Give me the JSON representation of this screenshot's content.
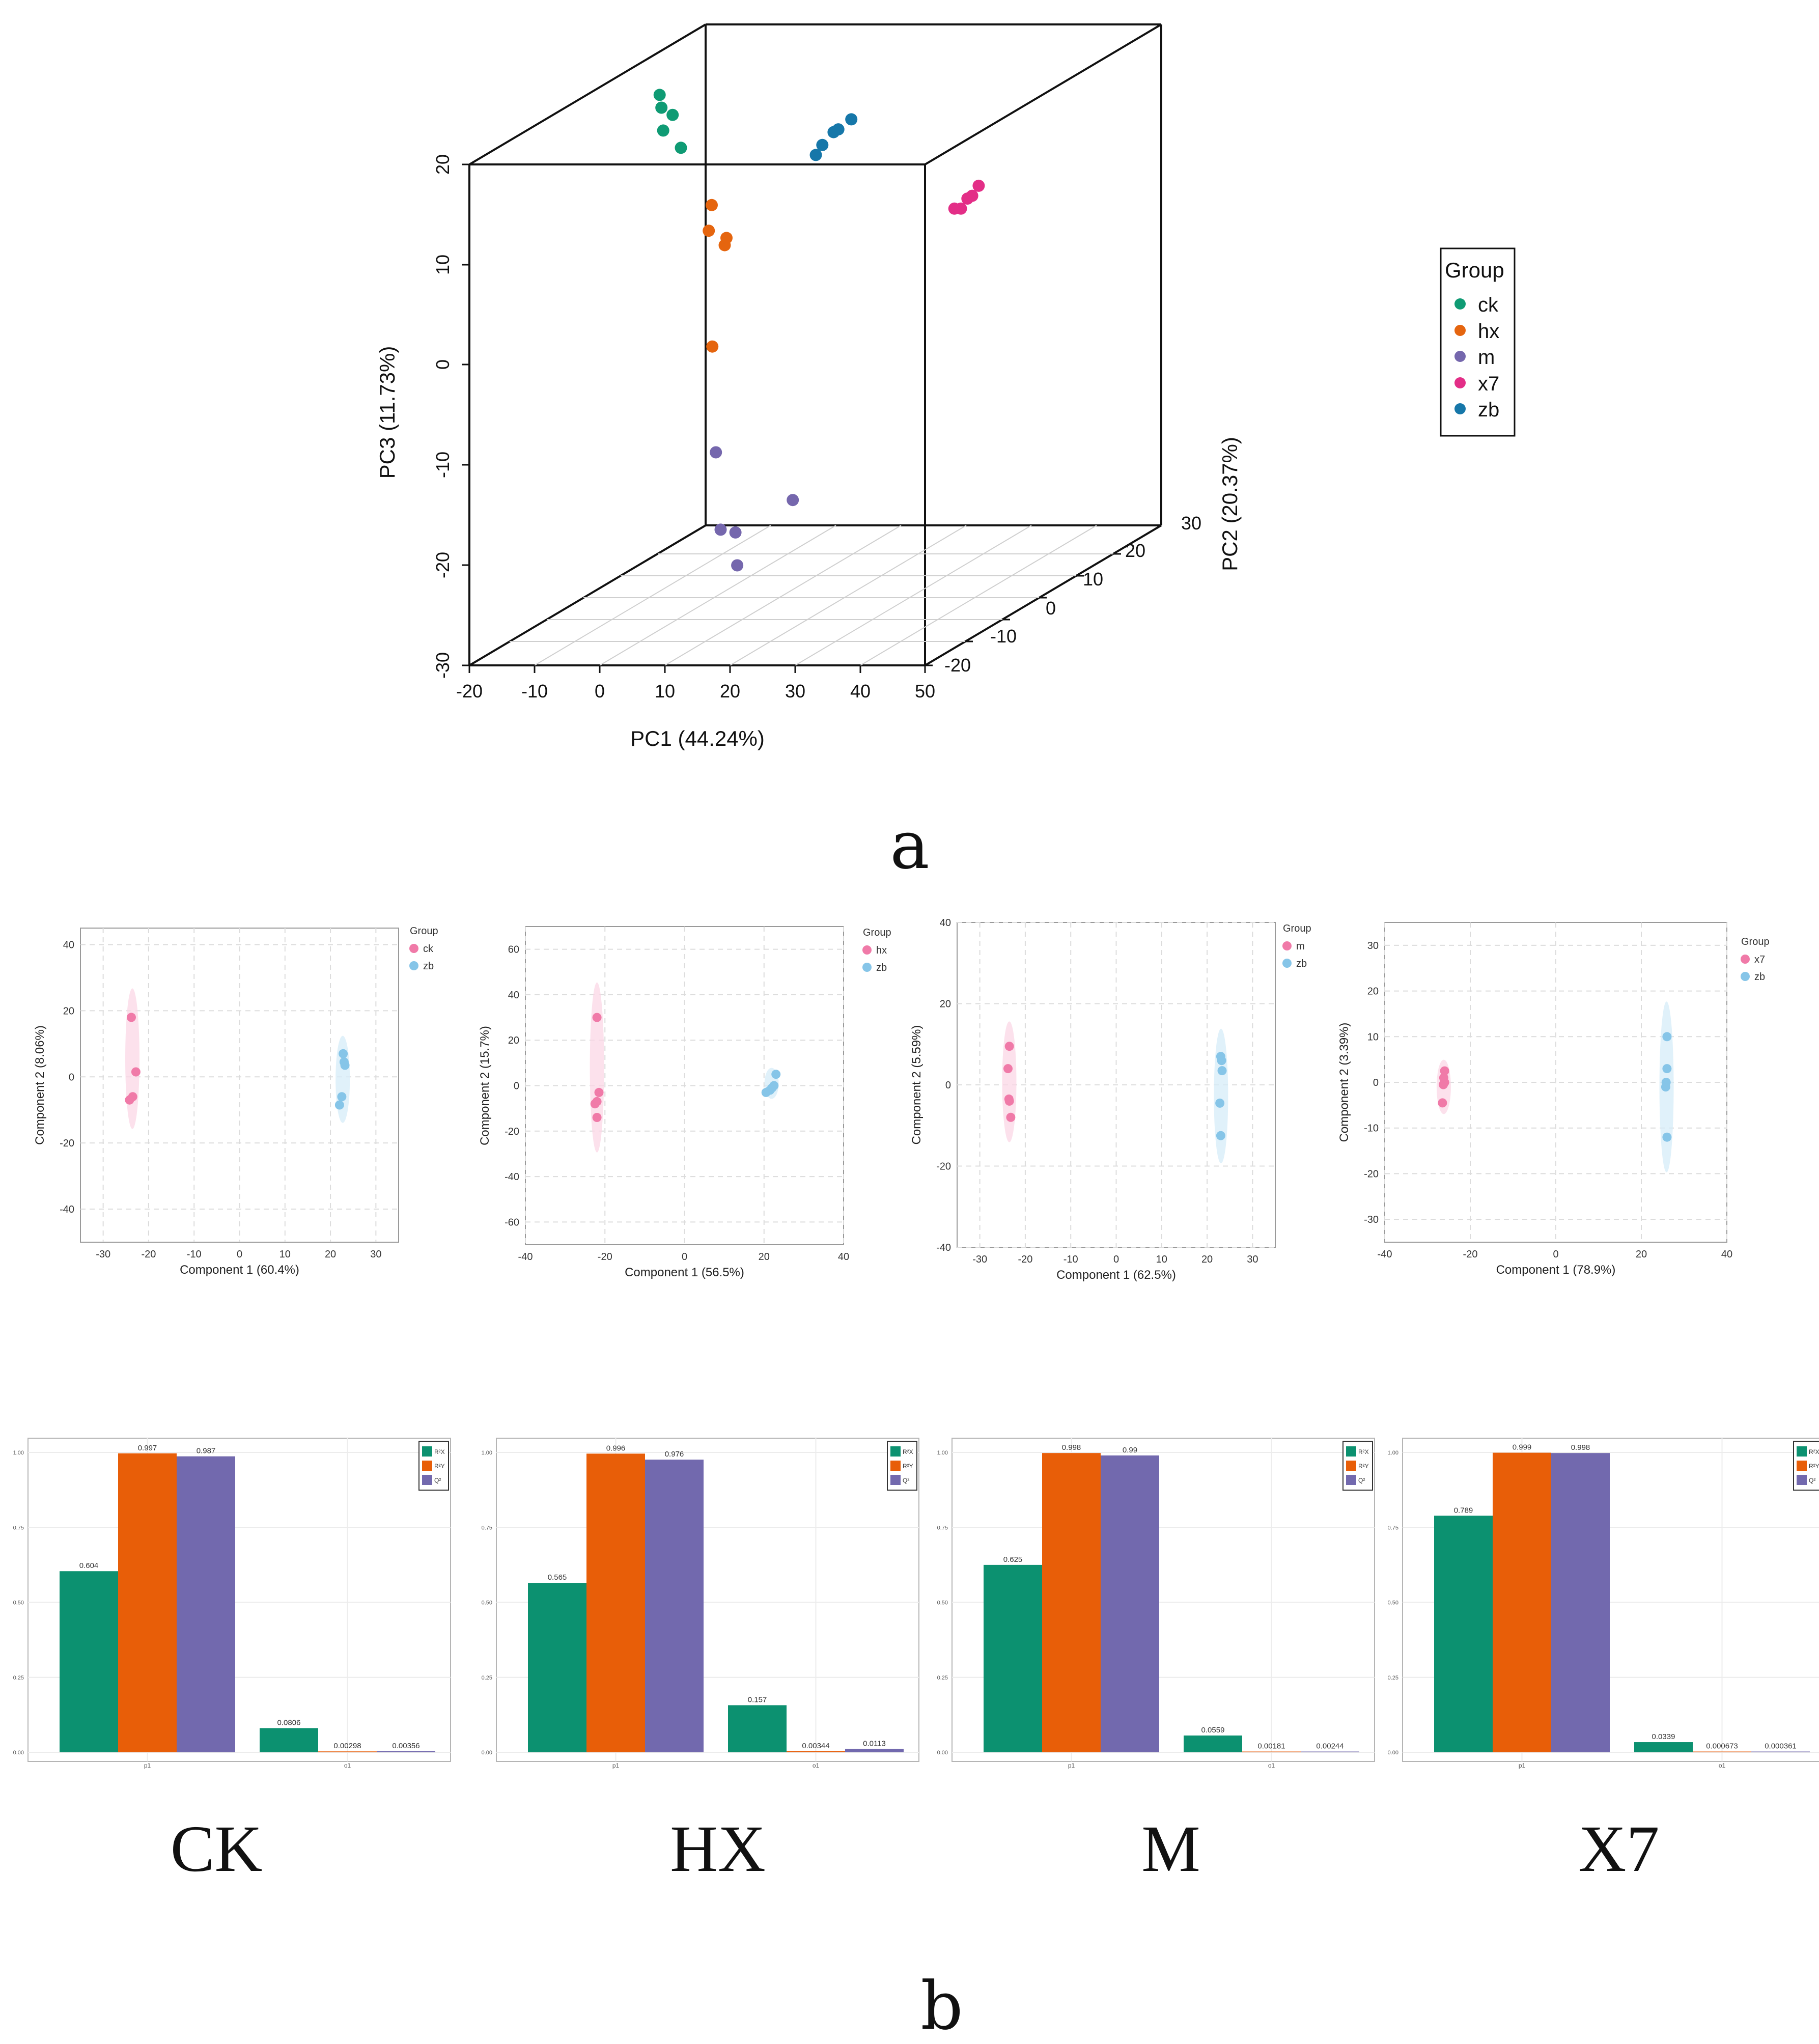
{
  "colors": {
    "ck": "#0f9b74",
    "hx": "#e5650f",
    "m": "#7567ad",
    "x7": "#e32e87",
    "zb": "#1677a9",
    "pink": "#f07aa8",
    "light_blue": "#86c5e8",
    "bar_green": "#0c9170",
    "bar_orange": "#e85e08",
    "bar_purple": "#7269ae"
  },
  "panel_a": {
    "letter": "a",
    "chart_data": {
      "type": "scatter3d",
      "xlabel": "PC1 (44.24%)",
      "ylabel": "PC2 (20.37%)",
      "zlabel": "PC3 (11.73%)",
      "x_ticks": [
        "-20",
        "-10",
        "0",
        "10",
        "20",
        "30",
        "40",
        "50"
      ],
      "y_ticks": [
        "-20",
        "-10",
        "0",
        "10",
        "20",
        "30"
      ],
      "z_ticks": [
        "-30",
        "-20",
        "-10",
        "0",
        "10",
        "20"
      ],
      "legend_title": "Group",
      "legend": [
        "ck",
        "hx",
        "m",
        "x7",
        "zb"
      ],
      "series": [
        {
          "name": "ck",
          "points": [
            [
              -14,
              12,
              18
            ],
            [
              -13,
              11,
              17
            ],
            [
              -12,
              12,
              16
            ],
            [
              -12,
              10,
              15
            ],
            [
              -10,
              11,
              13
            ]
          ]
        },
        {
          "name": "hx",
          "points": [
            [
              -6,
              12,
              7
            ],
            [
              -5,
              10,
              5
            ],
            [
              -4,
              12,
              3
            ],
            [
              -3,
              11,
              4
            ],
            [
              -3,
              8,
              -6
            ]
          ]
        },
        {
          "name": "m",
          "points": [
            [
              -1,
              6,
              -16
            ],
            [
              -1,
              7,
              -24
            ],
            [
              2,
              6,
              -24
            ],
            [
              3,
              5,
              -27
            ],
            [
              5,
              14,
              -23
            ]
          ]
        },
        {
          "name": "x7",
          "points": [
            [
              40,
              0,
              10
            ],
            [
              41,
              0,
              10
            ],
            [
              42,
              1,
              11
            ],
            [
              42,
              0,
              11
            ],
            [
              43,
              1,
              12
            ]
          ]
        },
        {
          "name": "zb",
          "points": [
            [
              10,
              12,
              12
            ],
            [
              11,
              12,
              13
            ],
            [
              12,
              14,
              14
            ],
            [
              12,
              13,
              14
            ],
            [
              14,
              14,
              15
            ]
          ]
        }
      ]
    }
  },
  "panel_b": {
    "letter": "b",
    "group_labels": [
      "CK",
      "HX",
      "M",
      "X7"
    ],
    "pls_da": [
      {
        "xlabel": "Component 1 (60.4%)",
        "ylabel": "Component 2 (8.06%)",
        "legend_title": "Group",
        "legend": [
          "ck",
          "zb"
        ],
        "xlim": [
          -35,
          35
        ],
        "ylim": [
          -50,
          45
        ],
        "x_ticks": [
          "-30",
          "-20",
          "-10",
          "0",
          "10",
          "20",
          "30"
        ],
        "y_ticks": [
          "-40",
          "-20",
          "0",
          "20",
          "40"
        ],
        "g1": [
          [
            -23.8,
            18
          ],
          [
            -22.8,
            1.5
          ],
          [
            -23.5,
            -6
          ],
          [
            -24.2,
            -7
          ]
        ],
        "g2": [
          [
            22.8,
            7
          ],
          [
            23,
            4.5
          ],
          [
            23.2,
            3.5
          ],
          [
            22.5,
            -6
          ],
          [
            22,
            -8.5
          ]
        ]
      },
      {
        "xlabel": "Component 1 (56.5%)",
        "ylabel": "Component 2 (15.7%)",
        "legend_title": "Group",
        "legend": [
          "hx",
          "zb"
        ],
        "xlim": [
          -40,
          40
        ],
        "ylim": [
          -70,
          70
        ],
        "x_ticks": [
          "-40",
          "-20",
          "0",
          "20",
          "40"
        ],
        "y_ticks": [
          "-60",
          "-40",
          "-20",
          "0",
          "20",
          "40",
          "60"
        ],
        "g1": [
          [
            -22,
            30
          ],
          [
            -21.5,
            -3
          ],
          [
            -22,
            -7
          ],
          [
            -22.5,
            -8
          ],
          [
            -22,
            -14
          ]
        ],
        "g2": [
          [
            23,
            5
          ],
          [
            22.5,
            0
          ],
          [
            22,
            -1
          ],
          [
            21.5,
            -2
          ],
          [
            20.5,
            -3
          ]
        ]
      },
      {
        "xlabel": "Component 1 (62.5%)",
        "ylabel": "Component 2 (5.59%)",
        "legend_title": "Group",
        "legend": [
          "m",
          "zb"
        ],
        "xlim": [
          -35,
          35
        ],
        "ylim": [
          -40,
          40
        ],
        "x_ticks": [
          "-30",
          "-20",
          "-10",
          "0",
          "10",
          "20",
          "30"
        ],
        "y_ticks": [
          "-40",
          "-20",
          "0",
          "20",
          "40"
        ],
        "g1": [
          [
            -23.5,
            9.5
          ],
          [
            -23.8,
            4
          ],
          [
            -23.5,
            -4
          ],
          [
            -23.6,
            -3.5
          ],
          [
            -23.2,
            -8
          ]
        ],
        "g2": [
          [
            23,
            7
          ],
          [
            23.2,
            6
          ],
          [
            23.3,
            3.5
          ],
          [
            22.8,
            -4.5
          ],
          [
            23,
            -12.5
          ]
        ]
      },
      {
        "xlabel": "Component 1 (78.9%)",
        "ylabel": "Component 2 (3.39%)",
        "legend_title": "Group",
        "legend": [
          "x7",
          "zb"
        ],
        "xlim": [
          -40,
          40
        ],
        "ylim": [
          -35,
          35
        ],
        "x_ticks": [
          "-40",
          "-20",
          "0",
          "20",
          "40"
        ],
        "y_ticks": [
          "-30",
          "-20",
          "-10",
          "0",
          "10",
          "20",
          "30"
        ],
        "g1": [
          [
            -26,
            2.5
          ],
          [
            -26.2,
            1
          ],
          [
            -26,
            0
          ],
          [
            -26.3,
            -0.5
          ],
          [
            -26.5,
            -4.5
          ]
        ],
        "g2": [
          [
            26,
            10
          ],
          [
            26,
            3
          ],
          [
            25.8,
            0
          ],
          [
            25.7,
            -1
          ],
          [
            26,
            -12
          ]
        ]
      }
    ],
    "bars": [
      {
        "legend": [
          "R²X",
          "R²Y",
          "Q²"
        ],
        "y_ticks": [
          "0.00",
          "0.25",
          "0.50",
          "0.75",
          "1.00"
        ],
        "categories": [
          "p1",
          "o1"
        ],
        "values": [
          [
            0.604,
            0.997,
            0.987
          ],
          [
            0.0806,
            0.00298,
            0.00356
          ]
        ],
        "labels": [
          [
            "0.604",
            "0.997",
            "0.987"
          ],
          [
            "0.0806",
            "0.00298",
            "0.00356"
          ]
        ]
      },
      {
        "legend": [
          "R²X",
          "R²Y",
          "Q²"
        ],
        "y_ticks": [
          "0.00",
          "0.25",
          "0.50",
          "0.75",
          "1.00"
        ],
        "categories": [
          "p1",
          "o1"
        ],
        "values": [
          [
            0.565,
            0.996,
            0.976
          ],
          [
            0.157,
            0.00344,
            0.0113
          ]
        ],
        "labels": [
          [
            "0.565",
            "0.996",
            "0.976"
          ],
          [
            "0.157",
            "0.00344",
            "0.0113"
          ]
        ]
      },
      {
        "legend": [
          "R²X",
          "R²Y",
          "Q²"
        ],
        "y_ticks": [
          "0.00",
          "0.25",
          "0.50",
          "0.75",
          "1.00"
        ],
        "categories": [
          "p1",
          "o1"
        ],
        "values": [
          [
            0.625,
            0.998,
            0.99
          ],
          [
            0.0559,
            0.00181,
            0.00244
          ]
        ],
        "labels": [
          [
            "0.625",
            "0.998",
            "0.99"
          ],
          [
            "0.0559",
            "0.00181",
            "0.00244"
          ]
        ]
      },
      {
        "legend": [
          "R²X",
          "R²Y",
          "Q²"
        ],
        "y_ticks": [
          "0.00",
          "0.25",
          "0.50",
          "0.75",
          "1.00"
        ],
        "categories": [
          "p1",
          "o1"
        ],
        "values": [
          [
            0.789,
            0.999,
            0.998
          ],
          [
            0.0339,
            0.000673,
            0.000361
          ]
        ],
        "labels": [
          [
            "0.789",
            "0.999",
            "0.998"
          ],
          [
            "0.0339",
            "0.000673",
            "0.000361"
          ]
        ]
      }
    ]
  }
}
